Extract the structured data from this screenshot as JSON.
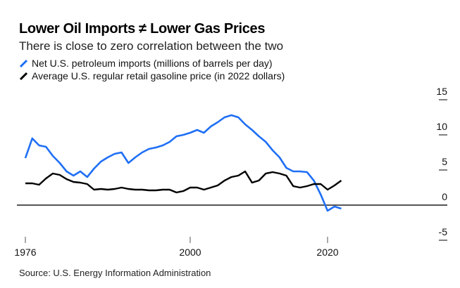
{
  "chart_data": {
    "type": "line",
    "title": "Lower Oil Imports ≠ Lower Gas Prices",
    "subtitle": "There is close to zero correlation between the two",
    "source": "Source: U.S. Energy Information Administration",
    "xlabel": "",
    "ylabel": "",
    "xlim": [
      1976,
      2022
    ],
    "ylim": [
      -5,
      15
    ],
    "x_ticks": [
      "1976",
      "2000",
      "2020"
    ],
    "y_ticks": [
      "15",
      "10",
      "5",
      "0",
      "-5"
    ],
    "x": [
      1976,
      1977,
      1978,
      1979,
      1980,
      1981,
      1982,
      1983,
      1984,
      1985,
      1986,
      1987,
      1988,
      1989,
      1990,
      1991,
      1992,
      1993,
      1994,
      1995,
      1996,
      1997,
      1998,
      1999,
      2000,
      2001,
      2002,
      2003,
      2004,
      2005,
      2006,
      2007,
      2008,
      2009,
      2010,
      2011,
      2012,
      2013,
      2014,
      2015,
      2016,
      2017,
      2018,
      2019,
      2020,
      2021,
      2022
    ],
    "series": [
      {
        "name": "Net U.S. petroleum imports (millions of barrels per day)",
        "color": "#1f6ff5",
        "values": [
          6.7,
          9.5,
          8.5,
          8.3,
          7.0,
          6.0,
          4.8,
          4.2,
          4.8,
          4.0,
          5.2,
          6.2,
          6.8,
          7.3,
          7.5,
          6.0,
          6.8,
          7.5,
          8.0,
          8.2,
          8.5,
          9.0,
          9.8,
          10.0,
          10.3,
          10.7,
          10.3,
          11.2,
          11.8,
          12.5,
          12.8,
          12.5,
          11.5,
          10.7,
          9.8,
          9.0,
          7.8,
          6.8,
          5.3,
          4.8,
          4.8,
          4.7,
          3.5,
          1.5,
          -0.8,
          -0.2,
          -0.5
        ]
      },
      {
        "name": "Average U.S. regular retail gasoline price (in 2022 dollars)",
        "color": "#000000",
        "values": [
          3.1,
          3.1,
          2.9,
          3.8,
          4.5,
          4.3,
          3.7,
          3.3,
          3.2,
          3.0,
          2.2,
          2.3,
          2.2,
          2.3,
          2.5,
          2.3,
          2.2,
          2.2,
          2.1,
          2.1,
          2.2,
          2.2,
          1.8,
          2.0,
          2.5,
          2.5,
          2.2,
          2.5,
          2.8,
          3.5,
          4.0,
          4.2,
          4.8,
          3.2,
          3.5,
          4.5,
          4.7,
          4.5,
          4.2,
          2.7,
          2.5,
          2.7,
          3.0,
          3.0,
          2.2,
          2.8,
          3.5
        ]
      }
    ],
    "grid": false,
    "legend_placement": "top-left"
  }
}
